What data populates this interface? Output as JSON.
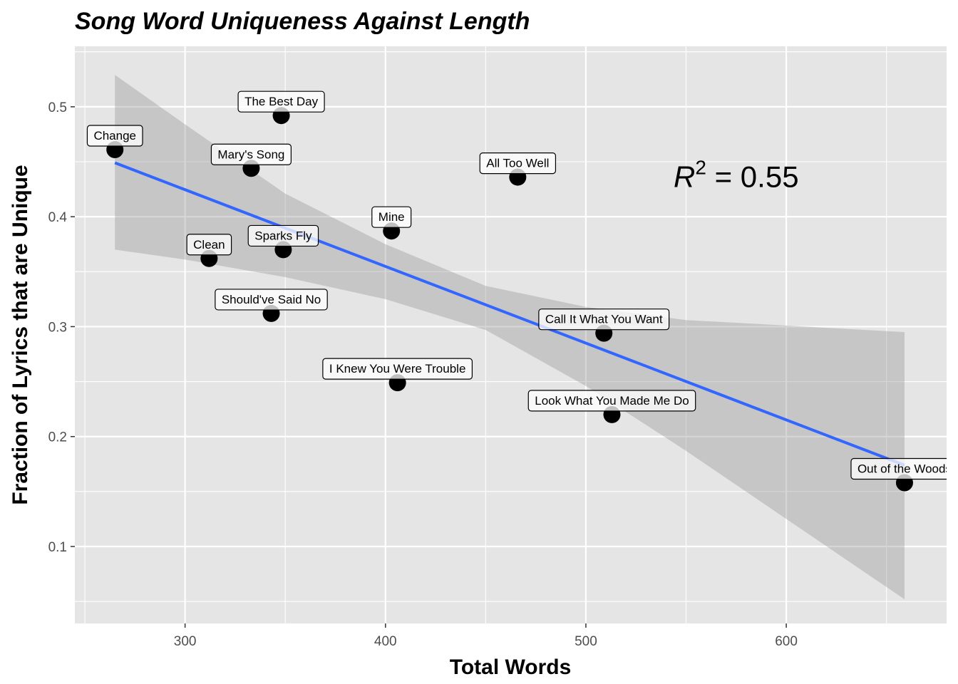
{
  "chart_data": {
    "type": "scatter",
    "title": "Song Word Uniqueness Against Length",
    "xlabel": "Total Words",
    "ylabel": "Fraction of Lyrics that are Unique",
    "xlim": [
      245,
      680
    ],
    "ylim": [
      0.03,
      0.555
    ],
    "xticks": [
      300,
      400,
      500,
      600
    ],
    "yticks": [
      0.1,
      0.2,
      0.3,
      0.4,
      0.5
    ],
    "xtick_labels": [
      "300",
      "400",
      "500",
      "600"
    ],
    "ytick_labels": [
      "0.1",
      "0.2",
      "0.3",
      "0.4",
      "0.5"
    ],
    "grid": true,
    "points": [
      {
        "label": "Change",
        "x": 265,
        "y": 0.461
      },
      {
        "label": "The Best Day",
        "x": 348,
        "y": 0.492
      },
      {
        "label": "Mary's Song",
        "x": 333,
        "y": 0.444
      },
      {
        "label": "All Too Well",
        "x": 466,
        "y": 0.436
      },
      {
        "label": "Mine",
        "x": 403,
        "y": 0.387
      },
      {
        "label": "Clean",
        "x": 312,
        "y": 0.362
      },
      {
        "label": "Sparks Fly",
        "x": 349,
        "y": 0.37
      },
      {
        "label": "Should've Said No",
        "x": 343,
        "y": 0.312
      },
      {
        "label": "Call It What You Want",
        "x": 509,
        "y": 0.294
      },
      {
        "label": "I Knew You Were Trouble",
        "x": 406,
        "y": 0.249
      },
      {
        "label": "Look What You Made Me Do",
        "x": 513,
        "y": 0.22
      },
      {
        "label": "Out of the Woods",
        "x": 659,
        "y": 0.158
      }
    ],
    "fit_line": {
      "x": [
        265,
        659
      ],
      "y": [
        0.449,
        0.174
      ],
      "color": "#3366FF"
    },
    "confidence_band": {
      "x": [
        265,
        300,
        350,
        400,
        450,
        500,
        550,
        600,
        659
      ],
      "upper": [
        0.529,
        0.484,
        0.421,
        0.375,
        0.337,
        0.318,
        0.306,
        0.301,
        0.295
      ],
      "lower": [
        0.37,
        0.361,
        0.345,
        0.325,
        0.297,
        0.246,
        0.187,
        0.125,
        0.052
      ]
    },
    "annotation": {
      "base": "R",
      "sup": "2",
      "text": " = 0.55",
      "x": 575,
      "y": 0.436
    }
  },
  "colors": {
    "panel_bg": "#E5E5E5",
    "grid": "#FFFFFF",
    "band": "#999999",
    "points": "#000000",
    "fit": "#3366FF"
  }
}
